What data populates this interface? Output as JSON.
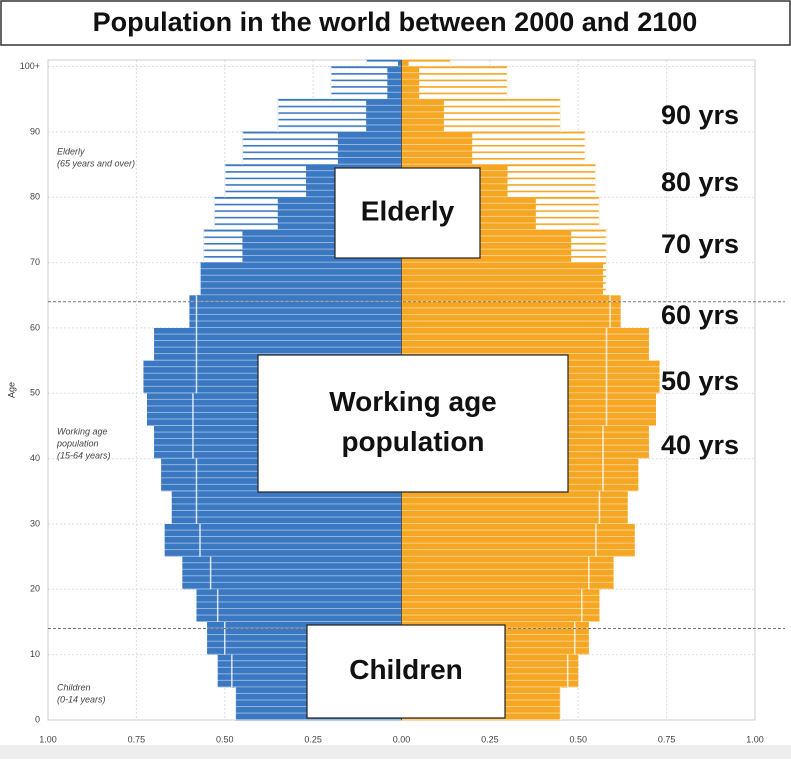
{
  "chart_data": {
    "type": "pyramid",
    "title": "Population in the world between 2000 and 2100",
    "y_label": "Age",
    "y": [
      0,
      5,
      10,
      15,
      20,
      25,
      30,
      35,
      40,
      45,
      50,
      55,
      60,
      65,
      70,
      75,
      80,
      85,
      90,
      95,
      100
    ],
    "series": [
      {
        "style": "outline",
        "color": "#3b78c2",
        "values": [
          -0.47,
          -0.48,
          -0.5,
          -0.52,
          -0.54,
          -0.57,
          -0.58,
          -0.58,
          -0.59,
          -0.59,
          -0.58,
          -0.58,
          -0.58,
          -0.57,
          -0.56,
          -0.53,
          -0.5,
          -0.45,
          -0.35,
          -0.2,
          -0.1
        ]
      },
      {
        "style": "outline",
        "color": "#f5a623",
        "values": [
          0.45,
          0.47,
          0.49,
          0.51,
          0.53,
          0.55,
          0.56,
          0.57,
          0.57,
          0.58,
          0.58,
          0.58,
          0.59,
          0.58,
          0.58,
          0.56,
          0.55,
          0.52,
          0.45,
          0.3,
          0.14
        ]
      },
      {
        "style": "filled",
        "color": "#3b78c2",
        "values": [
          -0.47,
          -0.52,
          -0.55,
          -0.58,
          -0.62,
          -0.67,
          -0.65,
          -0.68,
          -0.7,
          -0.72,
          -0.73,
          -0.7,
          -0.6,
          -0.57,
          -0.45,
          -0.35,
          -0.27,
          -0.18,
          -0.1,
          -0.04,
          -0.01
        ]
      },
      {
        "style": "filled",
        "color": "#f5a623",
        "values": [
          0.45,
          0.5,
          0.53,
          0.56,
          0.6,
          0.66,
          0.64,
          0.67,
          0.7,
          0.72,
          0.73,
          0.7,
          0.62,
          0.57,
          0.48,
          0.38,
          0.3,
          0.2,
          0.12,
          0.05,
          0.02
        ]
      }
    ],
    "xlim": [
      -1,
      1
    ],
    "xticks": [
      {
        "value": -1,
        "label": "1.00"
      },
      {
        "value": -0.75,
        "label": "0.75"
      },
      {
        "value": -0.5,
        "label": "0.50"
      },
      {
        "value": -0.25,
        "label": "0.25"
      },
      {
        "value": 0,
        "label": "0.00"
      },
      {
        "value": 0.25,
        "label": "0.25"
      },
      {
        "value": 0.5,
        "label": "0.50"
      },
      {
        "value": 0.75,
        "label": "0.75"
      },
      {
        "value": 1,
        "label": "1.00"
      }
    ],
    "ylim": [
      0,
      101
    ],
    "yticks": [
      0,
      10,
      20,
      30,
      40,
      50,
      60,
      70,
      80,
      90,
      {
        "value": 100,
        "label": "100+"
      }
    ],
    "grid": true,
    "reference_lines": [
      14,
      64
    ],
    "group_notes": [
      [
        "Elderly",
        "(65 years and over)"
      ],
      [
        "Working age",
        "population",
        "(15-64 years)"
      ],
      [
        "Children",
        "(0-14 years)"
      ]
    ],
    "group_labels": [
      [
        "Elderly"
      ],
      [
        "Working age",
        "population"
      ],
      [
        "Children"
      ]
    ],
    "age_labels": [
      "90 yrs",
      "80 yrs",
      "70 yrs",
      "60 yrs",
      "50 yrs",
      "40 yrs"
    ]
  }
}
